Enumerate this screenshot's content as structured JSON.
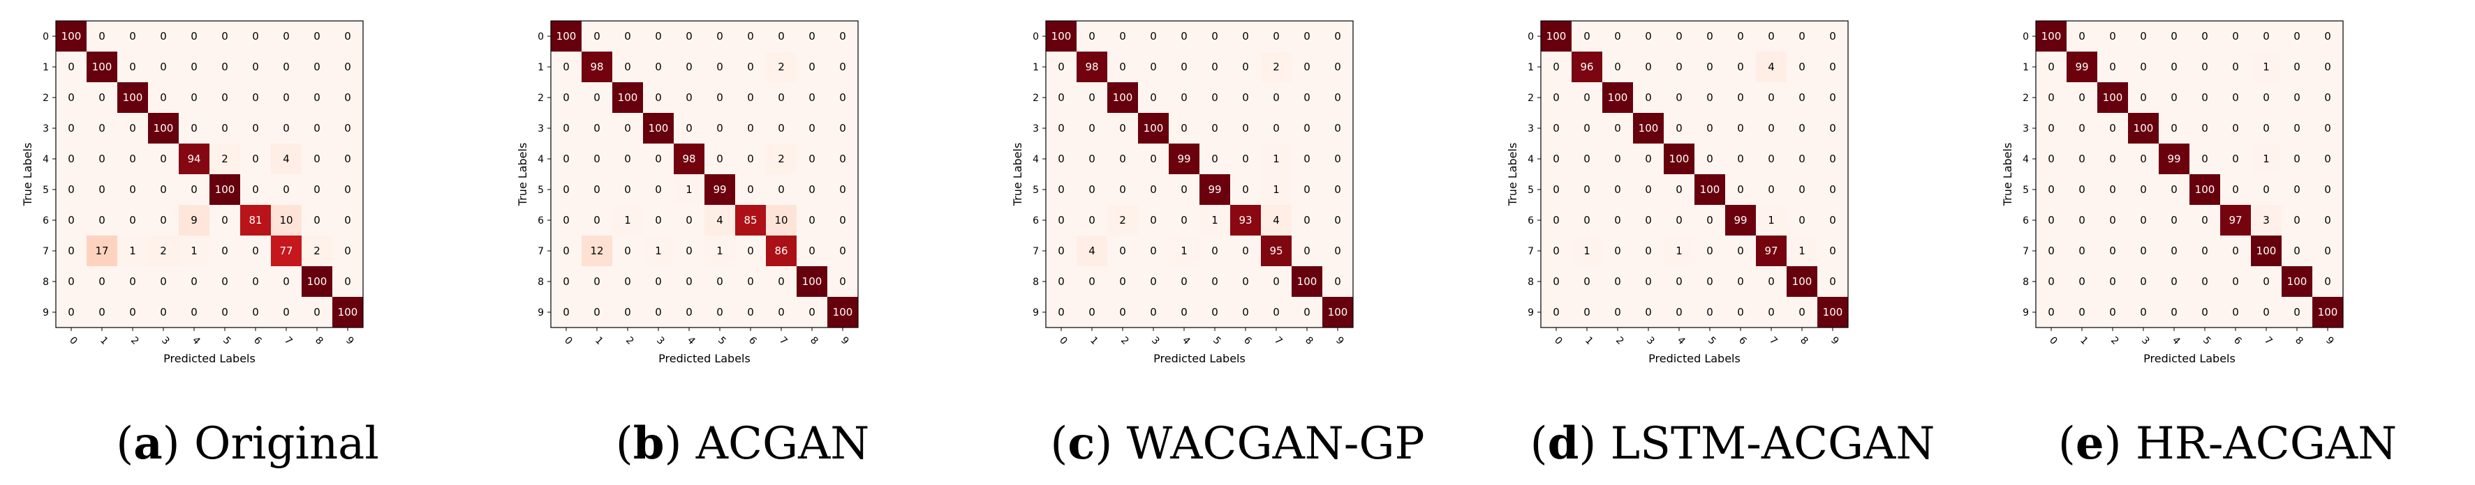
{
  "chart_data": [
    {
      "type": "heatmap",
      "caption_letter": "a",
      "caption_text": "Original",
      "xlabel": "Predicted Labels",
      "ylabel": "True Labels",
      "x_ticks": [
        "0",
        "1",
        "2",
        "3",
        "4",
        "5",
        "6",
        "7",
        "8",
        "9"
      ],
      "y_ticks": [
        "0",
        "1",
        "2",
        "3",
        "4",
        "5",
        "6",
        "7",
        "8",
        "9"
      ],
      "vmax": 100,
      "matrix": [
        [
          100,
          0,
          0,
          0,
          0,
          0,
          0,
          0,
          0,
          0
        ],
        [
          0,
          100,
          0,
          0,
          0,
          0,
          0,
          0,
          0,
          0
        ],
        [
          0,
          0,
          100,
          0,
          0,
          0,
          0,
          0,
          0,
          0
        ],
        [
          0,
          0,
          0,
          100,
          0,
          0,
          0,
          0,
          0,
          0
        ],
        [
          0,
          0,
          0,
          0,
          94,
          2,
          0,
          4,
          0,
          0
        ],
        [
          0,
          0,
          0,
          0,
          0,
          100,
          0,
          0,
          0,
          0
        ],
        [
          0,
          0,
          0,
          0,
          9,
          0,
          81,
          10,
          0,
          0
        ],
        [
          0,
          17,
          1,
          2,
          1,
          0,
          0,
          77,
          2,
          0
        ],
        [
          0,
          0,
          0,
          0,
          0,
          0,
          0,
          0,
          100,
          0
        ],
        [
          0,
          0,
          0,
          0,
          0,
          0,
          0,
          0,
          0,
          100
        ]
      ]
    },
    {
      "type": "heatmap",
      "caption_letter": "b",
      "caption_text": "ACGAN",
      "xlabel": "Predicted Labels",
      "ylabel": "True Labels",
      "x_ticks": [
        "0",
        "1",
        "2",
        "3",
        "4",
        "5",
        "6",
        "7",
        "8",
        "9"
      ],
      "y_ticks": [
        "0",
        "1",
        "2",
        "3",
        "4",
        "5",
        "6",
        "7",
        "8",
        "9"
      ],
      "vmax": 100,
      "matrix": [
        [
          100,
          0,
          0,
          0,
          0,
          0,
          0,
          0,
          0,
          0
        ],
        [
          0,
          98,
          0,
          0,
          0,
          0,
          0,
          2,
          0,
          0
        ],
        [
          0,
          0,
          100,
          0,
          0,
          0,
          0,
          0,
          0,
          0
        ],
        [
          0,
          0,
          0,
          100,
          0,
          0,
          0,
          0,
          0,
          0
        ],
        [
          0,
          0,
          0,
          0,
          98,
          0,
          0,
          2,
          0,
          0
        ],
        [
          0,
          0,
          0,
          0,
          1,
          99,
          0,
          0,
          0,
          0
        ],
        [
          0,
          0,
          1,
          0,
          0,
          4,
          85,
          10,
          0,
          0
        ],
        [
          0,
          12,
          0,
          1,
          0,
          1,
          0,
          86,
          0,
          0
        ],
        [
          0,
          0,
          0,
          0,
          0,
          0,
          0,
          0,
          100,
          0
        ],
        [
          0,
          0,
          0,
          0,
          0,
          0,
          0,
          0,
          0,
          100
        ]
      ]
    },
    {
      "type": "heatmap",
      "caption_letter": "c",
      "caption_text": "WACGAN-GP",
      "xlabel": "Predicted Labels",
      "ylabel": "True Labels",
      "x_ticks": [
        "0",
        "1",
        "2",
        "3",
        "4",
        "5",
        "6",
        "7",
        "8",
        "9"
      ],
      "y_ticks": [
        "0",
        "1",
        "2",
        "3",
        "4",
        "5",
        "6",
        "7",
        "8",
        "9"
      ],
      "vmax": 100,
      "matrix": [
        [
          100,
          0,
          0,
          0,
          0,
          0,
          0,
          0,
          0,
          0
        ],
        [
          0,
          98,
          0,
          0,
          0,
          0,
          0,
          2,
          0,
          0
        ],
        [
          0,
          0,
          100,
          0,
          0,
          0,
          0,
          0,
          0,
          0
        ],
        [
          0,
          0,
          0,
          100,
          0,
          0,
          0,
          0,
          0,
          0
        ],
        [
          0,
          0,
          0,
          0,
          99,
          0,
          0,
          1,
          0,
          0
        ],
        [
          0,
          0,
          0,
          0,
          0,
          99,
          0,
          1,
          0,
          0
        ],
        [
          0,
          0,
          2,
          0,
          0,
          1,
          93,
          4,
          0,
          0
        ],
        [
          0,
          4,
          0,
          0,
          1,
          0,
          0,
          95,
          0,
          0
        ],
        [
          0,
          0,
          0,
          0,
          0,
          0,
          0,
          0,
          100,
          0
        ],
        [
          0,
          0,
          0,
          0,
          0,
          0,
          0,
          0,
          0,
          100
        ]
      ]
    },
    {
      "type": "heatmap",
      "caption_letter": "d",
      "caption_text": "LSTM-ACGAN",
      "xlabel": "Predicted Labels",
      "ylabel": "True Labels",
      "x_ticks": [
        "0",
        "1",
        "2",
        "3",
        "4",
        "5",
        "6",
        "7",
        "8",
        "9"
      ],
      "y_ticks": [
        "0",
        "1",
        "2",
        "3",
        "4",
        "5",
        "6",
        "7",
        "8",
        "9"
      ],
      "vmax": 100,
      "matrix": [
        [
          100,
          0,
          0,
          0,
          0,
          0,
          0,
          0,
          0,
          0
        ],
        [
          0,
          96,
          0,
          0,
          0,
          0,
          0,
          4,
          0,
          0
        ],
        [
          0,
          0,
          100,
          0,
          0,
          0,
          0,
          0,
          0,
          0
        ],
        [
          0,
          0,
          0,
          100,
          0,
          0,
          0,
          0,
          0,
          0
        ],
        [
          0,
          0,
          0,
          0,
          100,
          0,
          0,
          0,
          0,
          0
        ],
        [
          0,
          0,
          0,
          0,
          0,
          100,
          0,
          0,
          0,
          0
        ],
        [
          0,
          0,
          0,
          0,
          0,
          0,
          99,
          1,
          0,
          0
        ],
        [
          0,
          1,
          0,
          0,
          1,
          0,
          0,
          97,
          1,
          0
        ],
        [
          0,
          0,
          0,
          0,
          0,
          0,
          0,
          0,
          100,
          0
        ],
        [
          0,
          0,
          0,
          0,
          0,
          0,
          0,
          0,
          0,
          100
        ]
      ]
    },
    {
      "type": "heatmap",
      "caption_letter": "e",
      "caption_text": "HR-ACGAN",
      "xlabel": "Predicted Labels",
      "ylabel": "True Labels",
      "x_ticks": [
        "0",
        "1",
        "2",
        "3",
        "4",
        "5",
        "6",
        "7",
        "8",
        "9"
      ],
      "y_ticks": [
        "0",
        "1",
        "2",
        "3",
        "4",
        "5",
        "6",
        "7",
        "8",
        "9"
      ],
      "vmax": 100,
      "matrix": [
        [
          100,
          0,
          0,
          0,
          0,
          0,
          0,
          0,
          0,
          0
        ],
        [
          0,
          99,
          0,
          0,
          0,
          0,
          0,
          1,
          0,
          0
        ],
        [
          0,
          0,
          100,
          0,
          0,
          0,
          0,
          0,
          0,
          0
        ],
        [
          0,
          0,
          0,
          100,
          0,
          0,
          0,
          0,
          0,
          0
        ],
        [
          0,
          0,
          0,
          0,
          99,
          0,
          0,
          1,
          0,
          0
        ],
        [
          0,
          0,
          0,
          0,
          0,
          100,
          0,
          0,
          0,
          0
        ],
        [
          0,
          0,
          0,
          0,
          0,
          0,
          97,
          3,
          0,
          0
        ],
        [
          0,
          0,
          0,
          0,
          0,
          0,
          0,
          100,
          0,
          0
        ],
        [
          0,
          0,
          0,
          0,
          0,
          0,
          0,
          0,
          100,
          0
        ],
        [
          0,
          0,
          0,
          0,
          0,
          0,
          0,
          0,
          0,
          100
        ]
      ]
    }
  ]
}
